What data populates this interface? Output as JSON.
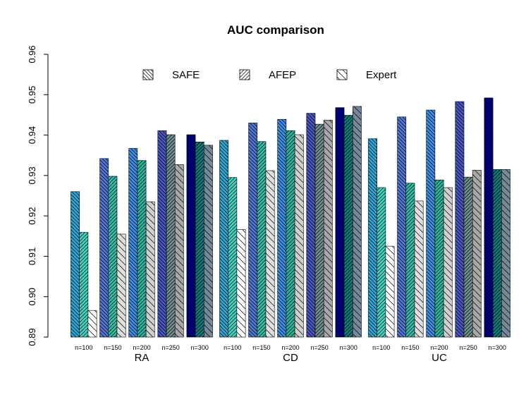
{
  "chart_data": {
    "type": "bar",
    "title": "AUC comparison",
    "xlabel": "",
    "ylabel": "",
    "ylim": [
      0.89,
      0.96
    ],
    "yticks": [
      "0.89",
      "0.90",
      "0.91",
      "0.92",
      "0.93",
      "0.94",
      "0.95",
      "0.96"
    ],
    "grid": false,
    "legend_position": "top-center",
    "groups": [
      "RA",
      "CD",
      "UC"
    ],
    "subgroups": [
      "n=100",
      "n=150",
      "n=200",
      "n=250",
      "n=300"
    ],
    "series": [
      {
        "name": "SAFE",
        "pattern": "back-diagonal",
        "values": [
          [
            0.926,
            0.9342,
            0.9367,
            0.9411,
            0.9401
          ],
          [
            0.9387,
            0.943,
            0.9439,
            0.9454,
            0.9468
          ],
          [
            0.9391,
            0.9445,
            0.9462,
            0.9483,
            0.9492
          ]
        ]
      },
      {
        "name": "AFEP",
        "pattern": "forward-diagonal",
        "values": [
          [
            0.9159,
            0.9298,
            0.9337,
            0.9401,
            0.9383
          ],
          [
            0.9295,
            0.9384,
            0.9411,
            0.9427,
            0.9449
          ],
          [
            0.927,
            0.9281,
            0.9289,
            0.9296,
            0.9315
          ]
        ]
      },
      {
        "name": "Expert",
        "pattern": "back-diagonal-sparse",
        "values": [
          [
            0.8966,
            0.9155,
            0.9235,
            0.9327,
            0.9375
          ],
          [
            0.9166,
            0.9312,
            0.9401,
            0.9437,
            0.9471
          ],
          [
            0.9125,
            0.9237,
            0.927,
            0.9313,
            0.9315
          ]
        ]
      }
    ],
    "colors": [
      [
        "#2ba8d8",
        "#38d6c3",
        "#ffffff"
      ],
      [
        "#5277d6",
        "#2fbfa8",
        "#e0e0e0"
      ],
      [
        "#3e8ee6",
        "#25b79d",
        "#cfcfcf"
      ],
      [
        "#4b57c4",
        "#70908e",
        "#a8a8a8"
      ],
      [
        "#00008b",
        "#117a78",
        "#778899"
      ]
    ]
  }
}
